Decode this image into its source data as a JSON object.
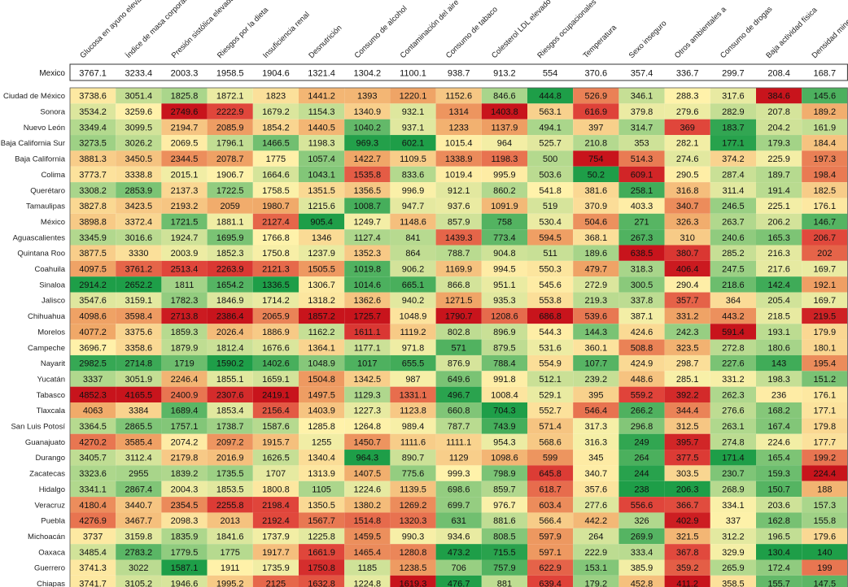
{
  "chart_data": {
    "type": "heatmap",
    "color_scale": {
      "description": "per-column scale: green = lowest values, yellow = middle, red = highest values",
      "stops": [
        "#1e9e48",
        "#a8d58a",
        "#fff2aa",
        "#f0a868",
        "#e0433a",
        "#c8141c"
      ]
    },
    "columns": [
      "Glucosa en ayuno elevada",
      "Índice de masa corporal elevado",
      "Presión sistólica elevada",
      "Riesgos por la dieta",
      "Insuficiencia renal",
      "Desnutrición",
      "Consumo de alcohol",
      "Contaminación del aire",
      "Consumo de tabaco",
      "Colesterol LDL elevado",
      "Riesgos ocupacionales",
      "Temperatura",
      "Sexo inseguro",
      "Otros ambientales a",
      "Consumo de drogas",
      "Baja actividad física",
      "Densidad mineral ósea baja"
    ],
    "national": {
      "label": "Mexico",
      "values": [
        3767.1,
        3233.4,
        2003.3,
        1958.5,
        1904.6,
        1321.4,
        1304.2,
        1100.1,
        938.7,
        913.2,
        554,
        370.6,
        357.4,
        336.7,
        299.7,
        208.4,
        168.7
      ]
    },
    "rows": [
      {
        "label": "Ciudad de México",
        "values": [
          3738.6,
          3051.4,
          1825.8,
          1872.1,
          1823,
          1441.2,
          1393,
          1220.1,
          1152.6,
          846.6,
          444.8,
          526.9,
          346.1,
          288.3,
          317.6,
          384.6,
          145.6
        ]
      },
      {
        "label": "Sonora",
        "values": [
          3534.2,
          3259.6,
          2749.6,
          2222.9,
          1679.2,
          1154.3,
          1340.9,
          932.1,
          1314,
          1403.8,
          563.1,
          616.9,
          379.8,
          279.6,
          282.9,
          207.8,
          189.2
        ]
      },
      {
        "label": "Nuevo León",
        "values": [
          3349.4,
          3099.5,
          2194.7,
          2085.9,
          1854.2,
          1440.5,
          1040.2,
          937.1,
          1233,
          1137.9,
          494.1,
          397,
          314.7,
          369,
          183.7,
          204.2,
          161.9
        ]
      },
      {
        "label": "Baja California Sur",
        "values": [
          3273.5,
          3026.2,
          2069.5,
          1796.1,
          1466.5,
          1198.3,
          969.3,
          602.1,
          1015.4,
          964,
          525.7,
          210.8,
          353,
          282.1,
          177.1,
          179.3,
          184.4
        ]
      },
      {
        "label": "Baja California",
        "values": [
          3881.3,
          3450.5,
          2344.5,
          2078.7,
          1775,
          1057.4,
          1422.7,
          1109.5,
          1338.9,
          1198.3,
          500,
          754,
          514.3,
          274.6,
          374.2,
          225.9,
          197.3
        ]
      },
      {
        "label": "Colima",
        "values": [
          3773.7,
          3338.8,
          2015.1,
          1906.7,
          1664.6,
          1043.1,
          1535.8,
          833.6,
          1019.4,
          995.9,
          503.6,
          50.2,
          609.1,
          290.5,
          287.4,
          189.7,
          198.4
        ]
      },
      {
        "label": "Querétaro",
        "values": [
          3308.2,
          2853.9,
          2137.3,
          1722.5,
          1758.5,
          1351.5,
          1356.5,
          996.9,
          912.1,
          860.2,
          541.8,
          381.6,
          258.1,
          316.8,
          311.4,
          191.4,
          182.5
        ]
      },
      {
        "label": "Tamaulipas",
        "values": [
          3827.8,
          3423.5,
          2193.2,
          2059,
          1980.7,
          1215.6,
          1008.7,
          947.7,
          937.6,
          1091.9,
          519,
          370.9,
          403.3,
          340.7,
          246.5,
          225.1,
          176.1
        ]
      },
      {
        "label": "México",
        "values": [
          3898.8,
          3372.4,
          1721.5,
          1881.1,
          2127.4,
          905.4,
          1249.7,
          1148.6,
          857.9,
          758,
          530.4,
          504.6,
          271,
          326.3,
          263.7,
          206.2,
          146.7
        ]
      },
      {
        "label": "Aguascalientes",
        "values": [
          3345.9,
          3016.6,
          1924.7,
          1695.9,
          1766.8,
          1346,
          1127.4,
          841,
          1439.3,
          773.4,
          594.5,
          368.1,
          267.3,
          310,
          240.6,
          165.3,
          206.7
        ]
      },
      {
        "label": "Quintana Roo",
        "values": [
          3877.5,
          3330,
          2003.9,
          1852.3,
          1750.8,
          1237.9,
          1352.3,
          864,
          788.7,
          904.8,
          511,
          189.6,
          638.5,
          380.7,
          285.2,
          216.3,
          202
        ]
      },
      {
        "label": "Coahuila",
        "values": [
          4097.5,
          3761.2,
          2513.4,
          2263.9,
          2121.3,
          1505.5,
          1019.8,
          906.2,
          1169.9,
          994.5,
          550.3,
          479.7,
          318.3,
          406.4,
          247.5,
          217.6,
          169.7
        ]
      },
      {
        "label": "Sinaloa",
        "values": [
          2914.2,
          2652.2,
          1811,
          1654.2,
          1336.5,
          1306.7,
          1014.6,
          665.1,
          866.8,
          951.1,
          545.6,
          272.9,
          300.5,
          290.4,
          218.6,
          142.4,
          192.1
        ]
      },
      {
        "label": "Jalisco",
        "values": [
          3547.6,
          3159.1,
          1782.3,
          1846.9,
          1714.2,
          1318.2,
          1362.6,
          940.2,
          1271.5,
          935.3,
          553.8,
          219.3,
          337.8,
          357.7,
          364,
          205.4,
          169.7
        ]
      },
      {
        "label": "Chihuahua",
        "values": [
          4098.6,
          3598.4,
          2713.8,
          2386.4,
          2065.9,
          1857.2,
          1725.7,
          1048.9,
          1790.7,
          1208.6,
          686.8,
          539.6,
          387.1,
          331.2,
          443.2,
          218.5,
          219.5
        ]
      },
      {
        "label": "Morelos",
        "values": [
          4077.2,
          3375.6,
          1859.3,
          2026.4,
          1886.9,
          1162.2,
          1611.1,
          1119.2,
          802.8,
          896.9,
          544.3,
          144.3,
          424.6,
          242.3,
          591.4,
          193.1,
          179.9
        ]
      },
      {
        "label": "Campeche",
        "values": [
          3696.7,
          3358.6,
          1879.9,
          1812.4,
          1676.6,
          1364.1,
          1177.1,
          971.8,
          571,
          879.5,
          531.6,
          360.1,
          508.8,
          323.5,
          272.8,
          180.6,
          180.1
        ]
      },
      {
        "label": "Nayarit",
        "values": [
          2982.5,
          2714.8,
          1719,
          1590.2,
          1402.6,
          1048.9,
          1017,
          655.5,
          876.9,
          788.4,
          554.9,
          107.7,
          424.9,
          298.7,
          227.6,
          143,
          195.4
        ]
      },
      {
        "label": "Yucatán",
        "values": [
          3337,
          3051.9,
          2246.4,
          1855.1,
          1659.1,
          1504.8,
          1342.5,
          987,
          649.6,
          991.8,
          512.1,
          239.2,
          448.6,
          285.1,
          331.2,
          198.3,
          151.2
        ]
      },
      {
        "label": "Tabasco",
        "values": [
          4852.3,
          4165.5,
          2400.9,
          2307.6,
          2419.1,
          1497.5,
          1129.3,
          1331.1,
          496.7,
          1008.4,
          529.1,
          395,
          559.2,
          392.2,
          262.3,
          236,
          176.1
        ]
      },
      {
        "label": "Tlaxcala",
        "values": [
          4063,
          3384,
          1689.4,
          1853.4,
          2156.4,
          1403.9,
          1227.3,
          1123.8,
          660.8,
          704.3,
          552.7,
          546.4,
          266.2,
          344.4,
          276.6,
          168.2,
          177.1
        ]
      },
      {
        "label": "San Luis Potosí",
        "values": [
          3364.5,
          2865.5,
          1757.1,
          1738.7,
          1587.6,
          1285.8,
          1264.8,
          989.4,
          787.7,
          743.9,
          571.4,
          317.3,
          296.8,
          312.5,
          263.1,
          167.4,
          179.8
        ]
      },
      {
        "label": "Guanajuato",
        "values": [
          4270.2,
          3585.4,
          2074.2,
          2097.2,
          1915.7,
          1255,
          1450.7,
          1111.6,
          1111.1,
          954.3,
          568.6,
          316.3,
          249,
          395.7,
          274.8,
          224.6,
          177.7
        ]
      },
      {
        "label": "Durango",
        "values": [
          3405.7,
          3112.4,
          2179.8,
          2016.9,
          1626.5,
          1340.4,
          964.3,
          890.7,
          1129,
          1098.6,
          599,
          345,
          264,
          377.5,
          171.4,
          165.4,
          199.2
        ]
      },
      {
        "label": "Zacatecas",
        "values": [
          3323.6,
          2955,
          1839.2,
          1735.5,
          1707,
          1313.9,
          1407.5,
          775.6,
          999.3,
          798.9,
          645.8,
          340.7,
          244,
          303.5,
          230.7,
          159.3,
          224.4
        ]
      },
      {
        "label": "Hidalgo",
        "values": [
          3341.1,
          2867.4,
          2004.3,
          1853.5,
          1800.8,
          1105,
          1224.6,
          1139.5,
          698.6,
          859.7,
          618.7,
          357.6,
          238,
          206.3,
          268.9,
          150.7,
          188
        ]
      },
      {
        "label": "Veracruz",
        "values": [
          4180.4,
          3440.7,
          2354.5,
          2255.8,
          2198.4,
          1350.5,
          1380.2,
          1269.2,
          699.7,
          976.7,
          603.4,
          277.6,
          556.6,
          366.7,
          334.1,
          203.6,
          157.3
        ]
      },
      {
        "label": "Puebla",
        "values": [
          4276.9,
          3467.7,
          2098.3,
          2013,
          2192.4,
          1567.7,
          1514.8,
          1320.3,
          631,
          881.6,
          566.4,
          442.2,
          326,
          402.9,
          337,
          162.8,
          155.8
        ]
      },
      {
        "label": "Michoacán",
        "values": [
          3737,
          3159.8,
          1835.9,
          1841.6,
          1737.9,
          1225.8,
          1459.5,
          990.3,
          934.6,
          808.5,
          597.9,
          264,
          269.9,
          321.5,
          312.2,
          196.5,
          179.6
        ]
      },
      {
        "label": "Oaxaca",
        "values": [
          3485.4,
          2783.2,
          1779.5,
          1775,
          1917.7,
          1661.9,
          1465.4,
          1280.8,
          473.2,
          715.5,
          597.1,
          222.9,
          333.4,
          367.8,
          329.9,
          130.4,
          140
        ]
      },
      {
        "label": "Guerrero",
        "values": [
          3741.3,
          3022,
          1587.1,
          1911,
          1735.9,
          1750.8,
          1185,
          1238.5,
          706,
          757.9,
          622.9,
          153.1,
          385.9,
          359.2,
          265.9,
          172.4,
          199
        ]
      },
      {
        "label": "Chiapas",
        "values": [
          3741.7,
          3105.2,
          1946.6,
          1995.2,
          2125,
          1632.8,
          1224.8,
          1619.3,
          476.7,
          881,
          639.4,
          179.2,
          452.8,
          411.2,
          358.5,
          155.7,
          147.5
        ]
      }
    ]
  }
}
